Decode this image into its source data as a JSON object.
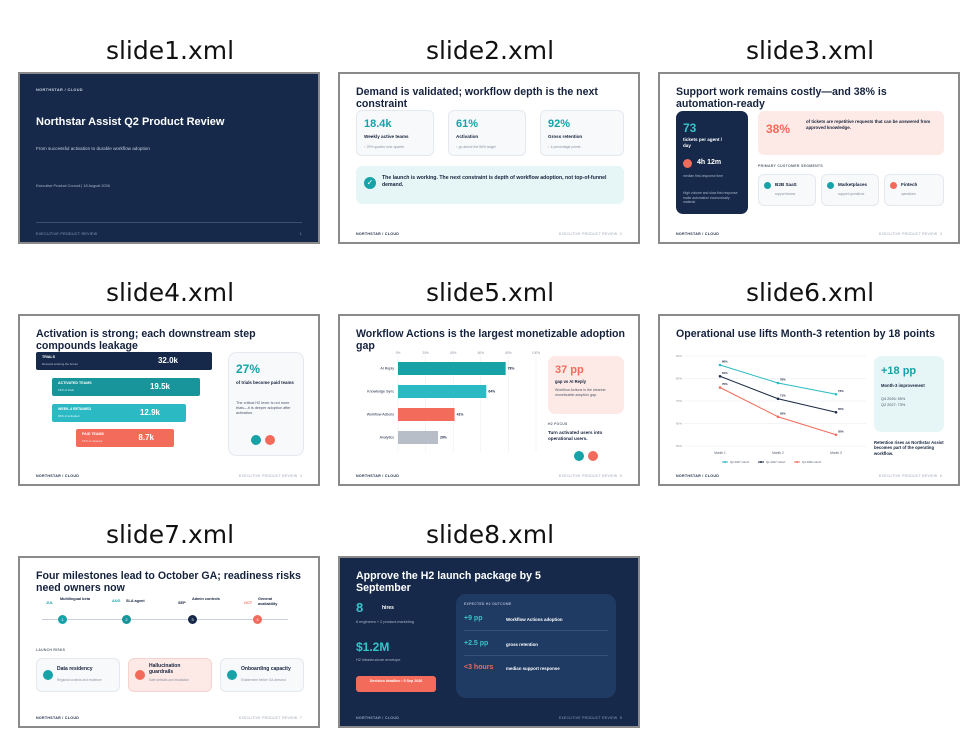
{
  "captions": [
    "slide1.xml",
    "slide2.xml",
    "slide3.xml",
    "slide4.xml",
    "slide5.xml",
    "slide6.xml",
    "slide7.xml",
    "slide8.xml"
  ],
  "common": {
    "brand": "NORTHSTAR / CLOUD",
    "footer": "EXECUTIVE PRODUCT REVIEW",
    "page_marks": [
      "1",
      "2",
      "3",
      "4",
      "5",
      "6",
      "7",
      "8"
    ]
  },
  "slide1": {
    "brand": "NORTHSTAR / CLOUD",
    "title": "Northstar Assist Q2 Product Review",
    "subtitle": "From successful activation to durable workflow adoption",
    "meta": "Executive Product Council | 18 August 2026"
  },
  "slide2": {
    "title": "Demand is validated; workflow depth is the next constraint",
    "metrics": [
      {
        "value": "18.4k",
        "label": "Weekly active teams",
        "note": "↑ 29% quarter over quarter"
      },
      {
        "value": "61%",
        "label": "Activation",
        "note": "↑ pp above the 56% target"
      },
      {
        "value": "92%",
        "label": "Gross retention",
        "note": "↑ 4 percentage points"
      }
    ],
    "callout": "The launch is working. The next constraint is depth of workflow adoption, not top-of-funnel demand."
  },
  "slide3": {
    "title": "Support work remains costly—and 38% is automation-ready",
    "tickets_value": "73",
    "tickets_label": "tickets per agent / day",
    "response_value": "4h 12m",
    "response_label": "median first-response time",
    "dark_note": "High volume and slow first response make automation economically material.",
    "pct_value": "38%",
    "pct_text": "of tickets are repetitive requests that can be answered from approved knowledge.",
    "segments_heading": "PRIMARY CUSTOMER SEGMENTS",
    "segments": [
      {
        "name": "B2B SaaS",
        "note": "support teams"
      },
      {
        "name": "Marketplaces",
        "note": "support operations"
      },
      {
        "name": "Fintech",
        "note": "operations"
      }
    ]
  },
  "slide4": {
    "title": "Activation is strong; each downstream step compounds leakage",
    "funnel": [
      {
        "label": "TRIALS",
        "note": "Demand entering the funnel",
        "value": "32.0k"
      },
      {
        "label": "ACTIVATED TEAMS",
        "note": "61% of trials",
        "value": "19.5k"
      },
      {
        "label": "WEEK-4 RETAINED",
        "note": "66% of activated",
        "value": "12.9k"
      },
      {
        "label": "PAID TEAMS",
        "note": "67% of retained",
        "value": "8.7k"
      }
    ],
    "side_value": "27%",
    "side_label": "of trials become paid teams",
    "side_note": "The critical H2 lever is not more trials—it is deeper adoption after activation."
  },
  "slide5": {
    "title": "Workflow Actions is the largest monetizable adoption gap",
    "axis_ticks": [
      "0%",
      "20%",
      "40%",
      "60%",
      "80%",
      "100%"
    ],
    "callout_value": "37 pp",
    "callout_label": "gap vs AI Reply",
    "callout_note": "Workflow Actions is the clearest monetizable adoption gap.",
    "focus_heading": "H2 FOCUS",
    "focus_text": "Turn activated users into operational users."
  },
  "slide6": {
    "title": "Operational use lifts Month-3 retention by 18 points",
    "y_ticks": [
      "90%",
      "80%",
      "70%",
      "60%",
      "50%"
    ],
    "big_value": "+18 pp",
    "big_label": "Month-3 improvement",
    "big_note1": "Q4 2026: 55%",
    "big_note2": "Q2 2027: 73%",
    "footnote": "Retention rises as Northstar Assist becomes part of the operating workflow."
  },
  "slide7": {
    "title": "Four milestones lead to October GA; readiness risks need owners now",
    "milestones": [
      {
        "month": "JUL",
        "name": "Multilingual beta",
        "num": "1"
      },
      {
        "month": "AUG",
        "name": "SLA agent",
        "num": "2"
      },
      {
        "month": "SEP",
        "name": "Admin controls",
        "num": "3"
      },
      {
        "month": "OCT",
        "name": "General availability",
        "num": "4"
      }
    ],
    "risks_heading": "LAUNCH RISKS",
    "risks": [
      {
        "name": "Data residency",
        "note": "Regional controls and evidence"
      },
      {
        "name": "Hallucination guardrails",
        "note": "Safe defaults and escalation"
      },
      {
        "name": "Onboarding capacity",
        "note": "Enablement before GA demand"
      }
    ]
  },
  "slide8": {
    "title": "Approve the H2 launch package by 5 September",
    "hires_value": "8",
    "hires_label": "hires",
    "hires_note": "6 engineers + 2 product-marketing",
    "budget_value": "$1.2M",
    "budget_note": "H2 infrastructure envelope",
    "deadline": "Decision deadline • 5 Sep 2026",
    "outcome_heading": "EXPECTED H2 OUTCOME",
    "outcomes": [
      {
        "value": "+9 pp",
        "label": "Workflow Actions adoption"
      },
      {
        "value": "+2.5 pp",
        "label": "gross retention"
      },
      {
        "value": "<3 hours",
        "label": "median support response"
      }
    ]
  },
  "chart_data": [
    {
      "type": "bar",
      "orientation": "horizontal",
      "categories": [
        "AI Reply",
        "Knowledge Sync",
        "Workflow Actions",
        "Analytics"
      ],
      "values": [
        78,
        64,
        41,
        29
      ],
      "data_labels": [
        "78%",
        "64%",
        "41%",
        "29%"
      ],
      "xlim": [
        0,
        100
      ],
      "colors": [
        "#17a2a8",
        "#2bbac4",
        "#f26b5b",
        "#b7bec8"
      ],
      "grid": true
    },
    {
      "type": "line",
      "categories": [
        "Month 1",
        "Month 2",
        "Month 3"
      ],
      "ylim": [
        50,
        90
      ],
      "series": [
        {
          "name": "Q2 2027 cohort",
          "values": [
            86,
            78,
            73
          ],
          "data_labels": [
            "86%",
            "78%",
            "73%"
          ],
          "color": "#2bbac4"
        },
        {
          "name": "Q1 2027 cohort",
          "values": [
            81,
            71,
            65
          ],
          "data_labels": [
            "81%",
            "71%",
            "65%"
          ],
          "color": "#1b2a44"
        },
        {
          "name": "Q4 2026 cohort",
          "values": [
            76,
            63,
            55
          ],
          "data_labels": [
            "76%",
            "63%",
            "55%"
          ],
          "color": "#f26b5b"
        }
      ],
      "legend": "bottom",
      "grid": true
    }
  ]
}
